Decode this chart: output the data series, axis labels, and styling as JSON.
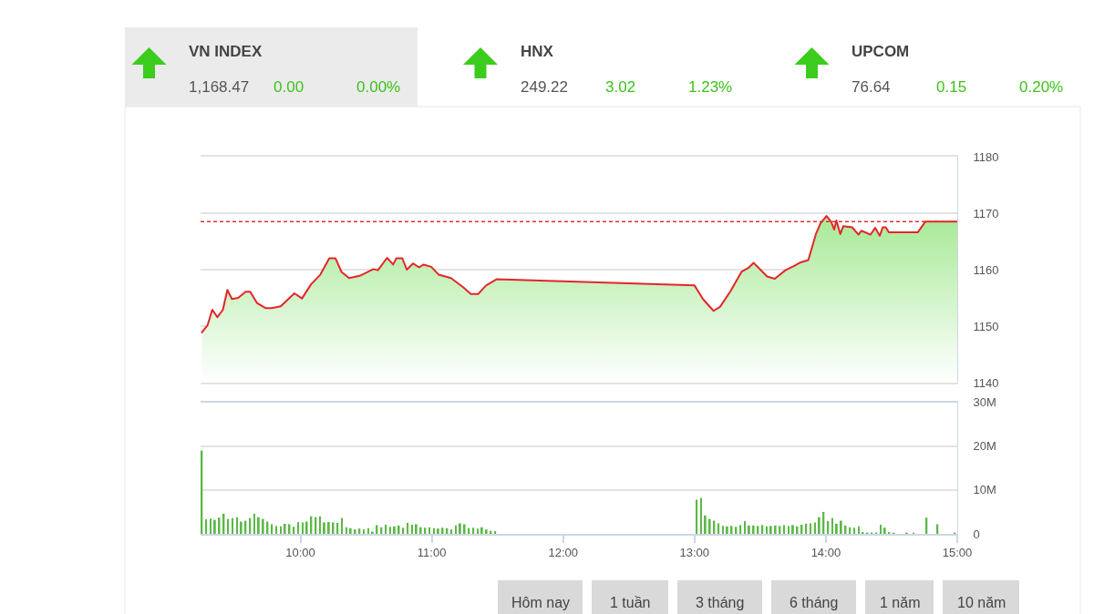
{
  "chart_data": [
    {
      "type": "other",
      "categories": [
        "VN INDEX",
        "HNX",
        "UPCOM"
      ],
      "cell_labels": [
        [
          "1,168.47",
          "0.00",
          "0.00%"
        ],
        [
          "249.22",
          "3.02",
          "1.23%"
        ],
        [
          "76.64",
          "0.15",
          "0.20%"
        ]
      ]
    },
    {
      "type": "area",
      "x": [
        9.25,
        9.294,
        9.329,
        9.368,
        9.41,
        9.444,
        9.479,
        9.526,
        9.583,
        9.618,
        9.669,
        9.734,
        9.78,
        9.85,
        9.954,
        10.012,
        10.081,
        10.151,
        10.22,
        10.267,
        10.313,
        10.371,
        10.451,
        10.556,
        10.59,
        10.66,
        10.706,
        10.73,
        10.776,
        10.81,
        10.857,
        10.903,
        10.938,
        10.996,
        11.053,
        11.146,
        11.239,
        11.297,
        11.354,
        11.413,
        11.493,
        13.0,
        13.064,
        13.145,
        13.194,
        13.275,
        13.357,
        13.415,
        13.45,
        13.553,
        13.611,
        13.692,
        13.762,
        13.808,
        13.866,
        13.924,
        13.959,
        14.005,
        14.04,
        14.063,
        14.08,
        14.11,
        14.132,
        14.2,
        14.248,
        14.27,
        14.34,
        14.375,
        14.41,
        14.433,
        14.456,
        14.479,
        14.699,
        14.757,
        15.0
      ],
      "series": [
        {
          "color": "#e3262a",
          "values": [
            1148.9,
            1150.2,
            1152.9,
            1151.6,
            1152.9,
            1156.4,
            1154.8,
            1155.0,
            1156.1,
            1156.1,
            1154.1,
            1153.2,
            1153.2,
            1153.5,
            1155.8,
            1154.9,
            1157.4,
            1159.1,
            1162.0,
            1162.0,
            1159.6,
            1158.5,
            1158.9,
            1160.1,
            1159.9,
            1162.1,
            1160.9,
            1162.0,
            1162.0,
            1160.0,
            1161.1,
            1160.4,
            1160.9,
            1160.5,
            1159.1,
            1158.5,
            1156.9,
            1155.7,
            1155.7,
            1157.2,
            1158.3,
            1157.2,
            1154.8,
            1152.7,
            1153.4,
            1156.2,
            1159.6,
            1160.4,
            1161.2,
            1158.8,
            1158.4,
            1159.9,
            1160.7,
            1161.3,
            1161.7,
            1166.3,
            1168.2,
            1169.5,
            1168.5,
            1167.1,
            1168.7,
            1166.3,
            1167.7,
            1167.5,
            1166.2,
            1166.9,
            1166.2,
            1167.4,
            1166.0,
            1167.5,
            1167.5,
            1166.6,
            1166.6,
            1168.5,
            1168.5
          ]
        }
      ],
      "xlim": [
        9.24,
        15.0
      ],
      "ylim": [
        1140,
        1180
      ],
      "yticks": [
        1140,
        1150,
        1160,
        1170,
        1180
      ],
      "grid": "y",
      "tick_labels": "y",
      "ref_lines": [
        {
          "axis": "y",
          "value": 1168.5,
          "color": "#e03030",
          "line_style": "dashed"
        }
      ]
    },
    {
      "type": "bar",
      "x": [
        9.25,
        9.283,
        9.317,
        9.35,
        9.383,
        9.417,
        9.45,
        9.483,
        9.517,
        9.55,
        9.583,
        9.617,
        9.65,
        9.683,
        9.717,
        9.75,
        9.783,
        9.817,
        9.85,
        9.883,
        9.917,
        9.95,
        9.983,
        10.017,
        10.05,
        10.083,
        10.117,
        10.15,
        10.183,
        10.217,
        10.25,
        10.283,
        10.317,
        10.35,
        10.383,
        10.417,
        10.45,
        10.483,
        10.517,
        10.55,
        10.583,
        10.617,
        10.65,
        10.683,
        10.717,
        10.75,
        10.783,
        10.817,
        10.85,
        10.883,
        10.917,
        10.95,
        10.983,
        11.017,
        11.05,
        11.083,
        11.117,
        11.15,
        11.183,
        11.217,
        11.25,
        11.283,
        11.317,
        11.35,
        11.383,
        11.417,
        11.45,
        11.483,
        13.017,
        13.05,
        13.083,
        13.117,
        13.15,
        13.183,
        13.217,
        13.25,
        13.283,
        13.317,
        13.35,
        13.383,
        13.417,
        13.45,
        13.483,
        13.517,
        13.55,
        13.583,
        13.617,
        13.65,
        13.683,
        13.717,
        13.75,
        13.783,
        13.817,
        13.85,
        13.883,
        13.917,
        13.95,
        13.983,
        14.017,
        14.05,
        14.083,
        14.117,
        14.15,
        14.183,
        14.217,
        14.25,
        14.283,
        14.317,
        14.35,
        14.383,
        14.417,
        14.45,
        14.483,
        14.517,
        14.617,
        14.667,
        14.767,
        14.85,
        14.983
      ],
      "series": [
        {
          "color": "#5cb848",
          "values": [
            19.0,
            3.3,
            3.5,
            3.2,
            3.7,
            4.6,
            3.4,
            3.6,
            3.8,
            2.8,
            3.0,
            3.6,
            4.6,
            3.8,
            3.4,
            2.8,
            2.2,
            1.8,
            1.7,
            2.3,
            2.2,
            1.6,
            2.7,
            2.6,
            2.8,
            4.0,
            3.8,
            4.0,
            2.6,
            2.7,
            2.6,
            2.5,
            3.6,
            1.5,
            1.3,
            1.0,
            1.2,
            1.0,
            1.3,
            0.5,
            2.0,
            1.5,
            2.1,
            1.6,
            1.7,
            1.9,
            1.4,
            2.5,
            2.1,
            2.2,
            1.5,
            1.4,
            1.5,
            1.3,
            1.2,
            1.4,
            1.3,
            1.0,
            1.9,
            2.4,
            2.2,
            1.3,
            1.4,
            1.2,
            1.5,
            1.0,
            0.7,
            0.6,
            7.8,
            8.2,
            4.2,
            3.4,
            3.0,
            2.4,
            1.8,
            1.7,
            1.8,
            1.6,
            2.0,
            2.9,
            1.9,
            1.9,
            1.8,
            2.0,
            1.7,
            1.8,
            1.9,
            1.8,
            2.0,
            1.8,
            2.0,
            1.7,
            2.1,
            2.3,
            2.4,
            2.6,
            3.8,
            5.0,
            2.9,
            3.6,
            2.3,
            3.0,
            1.9,
            1.5,
            1.4,
            1.7,
            0.4,
            0.3,
            0.3,
            0.3,
            2.1,
            1.4,
            0.4,
            0.2,
            0.2,
            0.2,
            3.7,
            2.2,
            0.2
          ]
        }
      ],
      "xlim": [
        9.24,
        15.0
      ],
      "xticks": [
        {
          "value": 10,
          "label": "10:00"
        },
        {
          "value": 11,
          "label": "11:00"
        },
        {
          "value": 12,
          "label": "12:00"
        },
        {
          "value": 13,
          "label": "13:00"
        },
        {
          "value": 14,
          "label": "14:00"
        },
        {
          "value": 15,
          "label": "15:00"
        }
      ],
      "ylim": [
        0,
        30
      ],
      "yticks": [
        0,
        {
          "value": 10,
          "label": "10M"
        },
        {
          "value": 20,
          "label": "20M"
        },
        {
          "value": 30,
          "label": "30M"
        }
      ],
      "grid": "y"
    },
    {
      "type": "other",
      "categories": [
        "Hôm nay",
        "1 tuần",
        "3 tháng",
        "6 tháng",
        "1 năm",
        "10 năm"
      ]
    }
  ]
}
